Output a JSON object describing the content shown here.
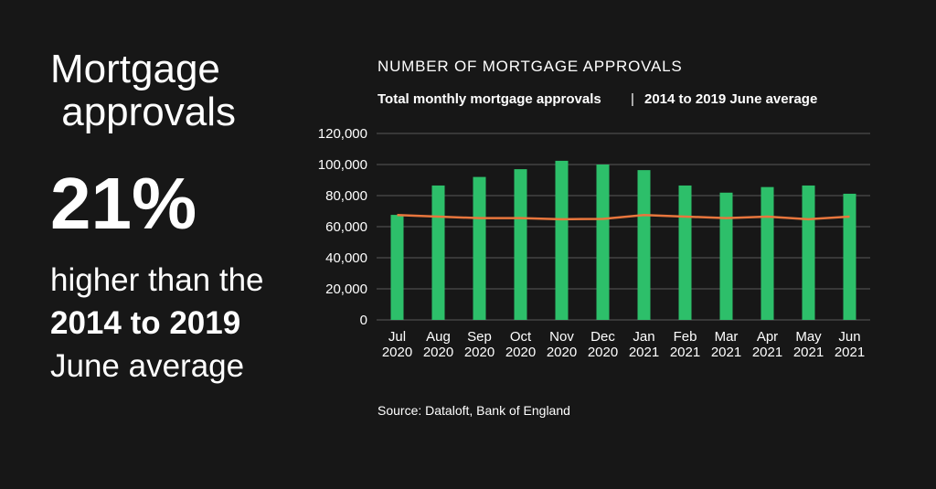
{
  "sidebar": {
    "heading": "Mortgage approvals",
    "figure": "21%",
    "line1": "higher than the",
    "line2": "2014 to 2019",
    "line3": "June average"
  },
  "chart_data": {
    "type": "bar",
    "title": "NUMBER OF MORTGAGE APPROVALS",
    "categories": [
      "Jul 2020",
      "Aug 2020",
      "Sep 2020",
      "Oct 2020",
      "Nov 2020",
      "Dec 2020",
      "Jan 2021",
      "Feb 2021",
      "Mar 2021",
      "Apr 2021",
      "May 2021",
      "Jun 2021"
    ],
    "series": [
      {
        "name": "Total monthly mortgage approvals",
        "type": "bar",
        "color": "#2dbf6a",
        "values": [
          67600,
          86500,
          92000,
          97000,
          102400,
          100000,
          96400,
          86500,
          81900,
          85500,
          86500,
          81200
        ]
      },
      {
        "name": "2014 to 2019 June average",
        "type": "line",
        "color": "#e8763d",
        "values": [
          67500,
          66500,
          65500,
          65500,
          64800,
          65000,
          67500,
          66500,
          65500,
          66500,
          64800,
          66500
        ]
      }
    ],
    "ylim": [
      0,
      120000
    ],
    "yticks": [
      0,
      {
        "value": 20000,
        "label": "20,000"
      },
      {
        "value": 40000,
        "label": "40,000"
      },
      {
        "value": 60000,
        "label": "60,000"
      },
      {
        "value": 80000,
        "label": "80,000"
      },
      {
        "value": 100000,
        "label": "100,000"
      },
      {
        "value": 120000,
        "label": "120,000"
      }
    ],
    "grid": true,
    "source": "Source: Dataloft, Bank of England"
  }
}
